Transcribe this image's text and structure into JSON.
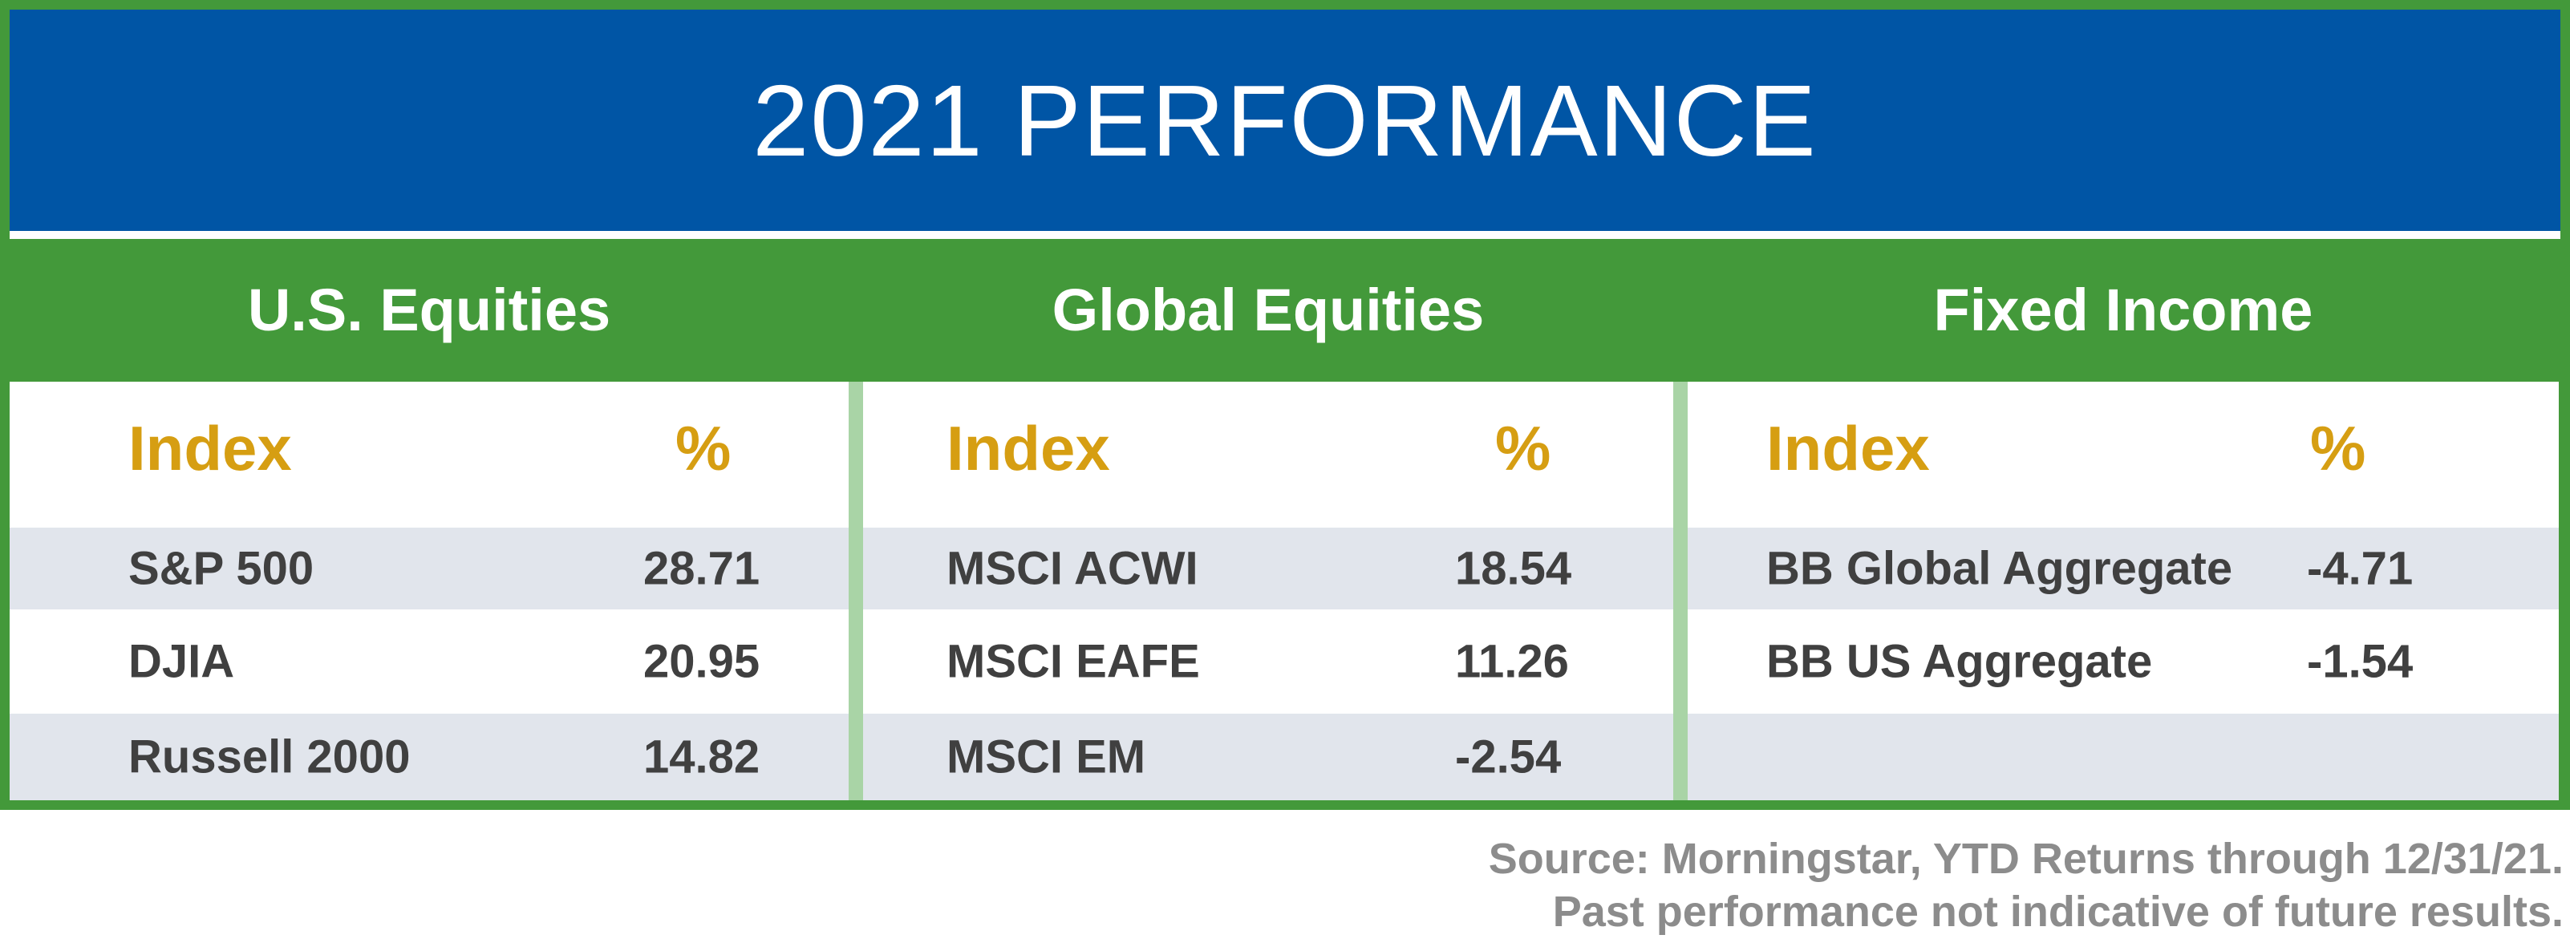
{
  "title": "2021 PERFORMANCE",
  "colors": {
    "title_bg": "#0055a5",
    "frame_green": "#43993a",
    "header_gold": "#d69e12",
    "row_shade": "#e1e5ec",
    "divider_green": "#a9d4a6",
    "text_dark": "#404040",
    "footnote_gray": "#8c8c8c"
  },
  "table_header": {
    "index": "Index",
    "percent": "%"
  },
  "sections": [
    {
      "name": "U.S. Equities",
      "rows": [
        {
          "index": "S&P 500",
          "value": "28.71"
        },
        {
          "index": "DJIA",
          "value": "20.95"
        },
        {
          "index": "Russell 2000",
          "value": "14.82"
        }
      ]
    },
    {
      "name": "Global Equities",
      "rows": [
        {
          "index": "MSCI ACWI",
          "value": "18.54"
        },
        {
          "index": "MSCI EAFE",
          "value": "11.26"
        },
        {
          "index": "MSCI EM",
          "value": "-2.54"
        }
      ]
    },
    {
      "name": "Fixed Income",
      "rows": [
        {
          "index": "BB Global Aggregate",
          "value": "-4.71"
        },
        {
          "index": "BB US Aggregate",
          "value": "-1.54"
        },
        {
          "index": "",
          "value": ""
        }
      ]
    }
  ],
  "footnote": {
    "line1": "Source: Morningstar, YTD Returns through 12/31/21.",
    "line2": "Past performance not indicative of future results."
  }
}
